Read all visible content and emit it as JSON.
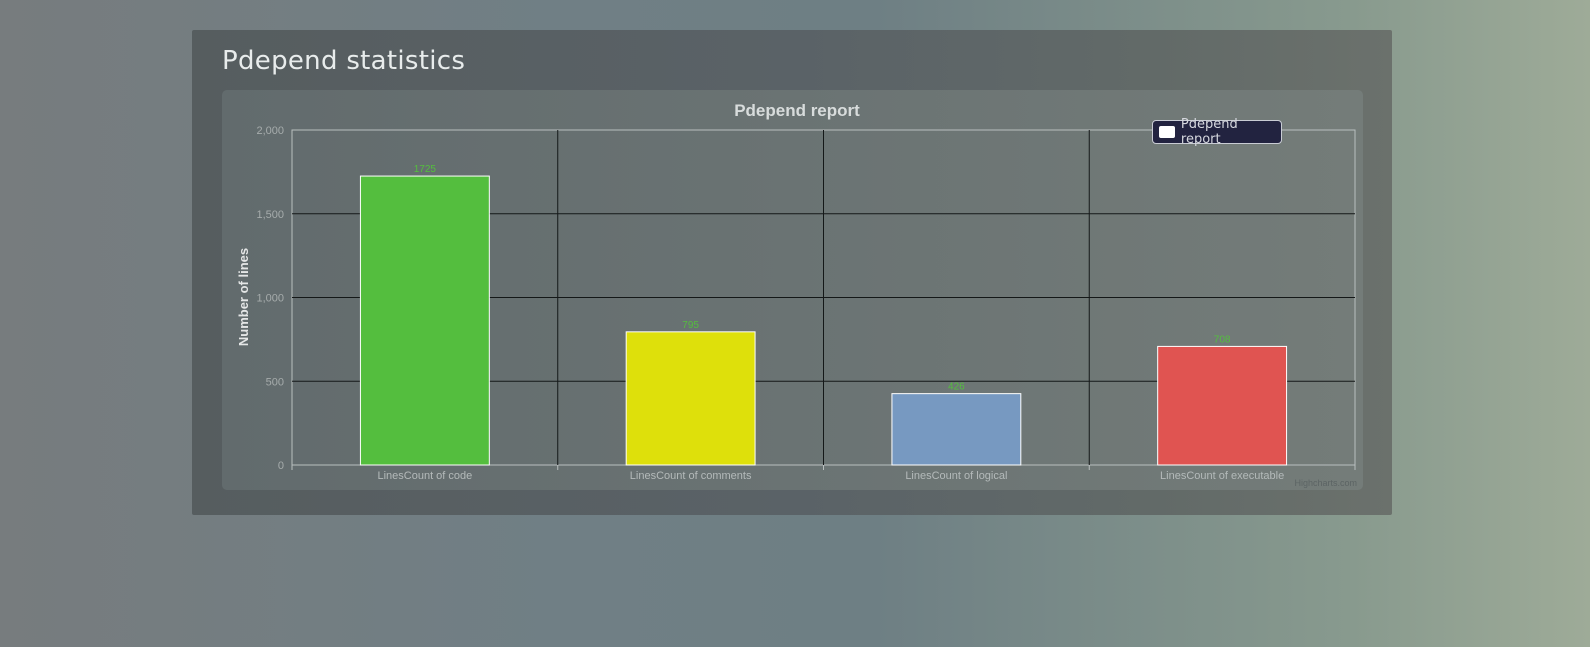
{
  "page": {
    "title": "Pdepend statistics"
  },
  "chart_data": {
    "type": "bar",
    "title": "Pdepend report",
    "ylabel": "Number of lines",
    "xlabel": "",
    "categories": [
      "LinesCount of code",
      "LinesCount of comments",
      "LinesCount of logical",
      "LinesCount of executable"
    ],
    "series": [
      {
        "name": "Pdepend report",
        "values": [
          1725,
          795,
          426,
          708
        ]
      }
    ],
    "bar_colors": [
      "#54be3e",
      "#dee00b",
      "#7799c1",
      "#e05451"
    ],
    "data_label_color": "#54be3e",
    "ylim": [
      0,
      2000
    ],
    "yticks": [
      "0",
      "500",
      "1,000",
      "1,500",
      "2,000"
    ],
    "ytick_values": [
      0,
      500,
      1000,
      1500,
      2000
    ],
    "grid": true,
    "legend_position": "top-right",
    "credit": "Highcharts.com"
  }
}
